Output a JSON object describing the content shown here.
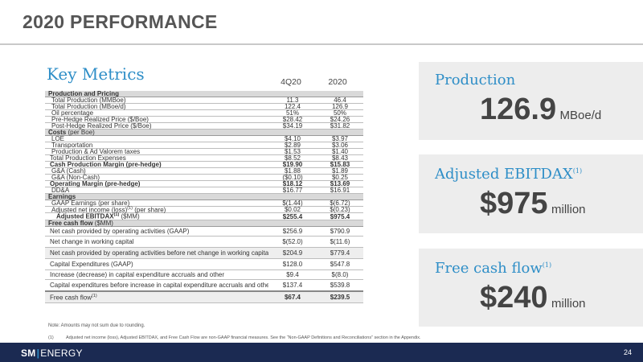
{
  "page": {
    "title": "2020 PERFORMANCE",
    "page_number": "24"
  },
  "key_metrics": {
    "title": "Key Metrics",
    "col1": "4Q20",
    "col2": "2020",
    "rows": [
      {
        "label": "Production and Pricing",
        "v1": "",
        "v2": "",
        "style": "sec",
        "h": 8
      },
      {
        "label": "Total Production (MMBoe)",
        "v1": "11.3",
        "v2": "46.4",
        "style": "ind1",
        "h": 8
      },
      {
        "label": "Total Production (MBoe/d)",
        "v1": "122.4",
        "v2": "126.9",
        "style": "ind1",
        "h": 8
      },
      {
        "label": "Oil percentage",
        "v1": "51%",
        "v2": "50%",
        "style": "ind1",
        "h": 8
      },
      {
        "label": "Pre-Hedge Realized Price ($/Boe)",
        "v1": "$28.42",
        "v2": "$24.26",
        "style": "ind1",
        "h": 8
      },
      {
        "label": "Post-Hedge Realized Price ($/Boe)",
        "v1": "$34.19",
        "v2": "$31.82",
        "style": "ind1",
        "h": 8
      },
      {
        "label": "Costs",
        "sub": " (per Boe)",
        "v1": "",
        "v2": "",
        "style": "sec",
        "h": 8
      },
      {
        "label": "LOE",
        "v1": "$4.10",
        "v2": "$3.97",
        "style": "ind1",
        "h": 8
      },
      {
        "label": "Transportation",
        "v1": "$2.89",
        "v2": "$3.06",
        "style": "ind1",
        "h": 8
      },
      {
        "label": "Production & Ad Valorem taxes",
        "v1": "$1.53",
        "v2": "$1.40",
        "style": "ind1",
        "h": 8
      },
      {
        "label": "Total Production Expenses",
        "v1": "$8.52",
        "v2": "$8.43",
        "style": "",
        "h": 8
      },
      {
        "label": "Cash Production Margin (pre-hedge)",
        "v1": "$19.90",
        "v2": "$15.83",
        "style": "bold",
        "h": 8
      },
      {
        "label": "G&A (Cash)",
        "v1": "$1.88",
        "v2": "$1.89",
        "style": "ind1",
        "h": 8
      },
      {
        "label": "G&A (Non-Cash)",
        "v1": "($0.10)",
        "v2": "$0.25",
        "style": "ind1",
        "h": 8
      },
      {
        "label": "Operating Margin (pre-hedge)",
        "v1": "$18.12",
        "v2": "$13.69",
        "style": "bold",
        "h": 8
      },
      {
        "label": "DD&A",
        "v1": "$16.77",
        "v2": "$16.91",
        "style": "ind1",
        "h": 8
      },
      {
        "label": "Earnings",
        "v1": "",
        "v2": "",
        "style": "sec",
        "h": 8
      },
      {
        "label": "GAAP Earnings (per share)",
        "v1": "$(1.44)",
        "v2": "$(6.72)",
        "style": "ind1",
        "h": 8
      },
      {
        "label": "Adjusted net income (loss)",
        "sup": "(1)",
        "tail": " (per share)",
        "v1": "$0.02",
        "v2": "$(0.23)",
        "style": "ind1",
        "h": 8
      },
      {
        "label": "Adjusted EBITDAX",
        "sup": "(1)",
        "tail": " ($MM)",
        "v1": "$255.4",
        "v2": "$975.4",
        "style": "ind2 boldv bold",
        "h": 9
      },
      {
        "label": "Free cash flow",
        "sub": " ($MM)",
        "v1": "",
        "v2": "",
        "style": "sec",
        "h": 8
      },
      {
        "label": "Net cash provided by operating activities (GAAP)",
        "v1": "$256.9",
        "v2": "$790.9",
        "style": "",
        "h": 12
      },
      {
        "label": "Net change in working capital",
        "v1": "$(52.0)",
        "v2": "$(11.6)",
        "style": "",
        "h": 14
      },
      {
        "label": "Net cash provided by operating activities before net change in working capital",
        "v1": "$204.9",
        "v2": "$779.4",
        "style": "shade",
        "h": 14
      },
      {
        "label": "Capital Expenditures (GAAP)",
        "v1": "$128.0",
        "v2": "$547.8",
        "style": "",
        "h": 14
      },
      {
        "label": "Increase (decrease) in capital expenditure accruals and other",
        "v1": "$9.4",
        "v2": "$(8.0)",
        "style": "",
        "h": 12
      },
      {
        "label": "Capital expenditures before increase in capital expenditure accruals and other",
        "v1": "$137.4",
        "v2": "$539.8",
        "style": "dbl",
        "h": 15
      },
      {
        "label": "Free cash flow",
        "sup": "(1)",
        "tail": "",
        "v1": "$67.4",
        "v2": "$239.5",
        "style": "shade boldv",
        "h": 14
      }
    ]
  },
  "note": "Note: Amounts may not sum due to rounding.",
  "footnote": {
    "marker": "(1)",
    "text": "Adjusted net income (loss), Adjusted EBITDAX, and Free Cash Flow are non-GAAP financial measures. See the “Non-GAAP Definitions and Reconciliations” section in the Appendix."
  },
  "production": {
    "label": "Production",
    "value": "126.9",
    "unit": "MBoe/d"
  },
  "ebitdax": {
    "label": "Adjusted EBITDAX",
    "sup": "(1)",
    "value": "$975",
    "unit": "million"
  },
  "fcf": {
    "label": "Free cash flow",
    "sup": "(1)",
    "value": "$240",
    "unit": "million"
  },
  "footer": {
    "logo_a": "SM",
    "logo_sep": "|",
    "logo_b": "ENERGY"
  },
  "colors": {
    "accent": "#2e8ec7",
    "footer_bg": "#1b2a52",
    "box_bg": "#ededed"
  }
}
